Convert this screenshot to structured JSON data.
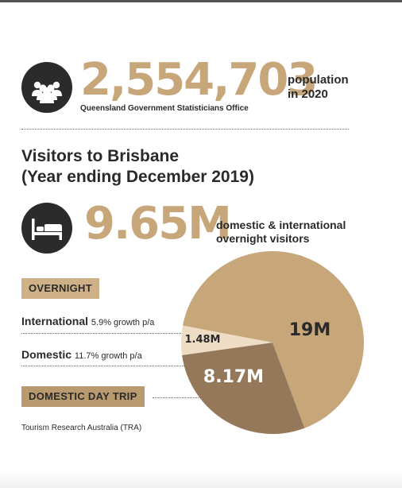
{
  "colors": {
    "accent": "#c7a77a",
    "pie_large": "#c7a77a",
    "pie_domestic": "#95785a",
    "pie_international": "#efdcc4",
    "icon_bg": "#2b2b2b",
    "tag_overnight": "#cfb188",
    "tag_daytrip": "#b99a6f"
  },
  "population": {
    "icon": "people-group-icon",
    "value": "2,554,703",
    "label": "population in 2020",
    "label_line1": "population",
    "label_line2": "in 2020",
    "source": "Queensland Government Statisticians Office"
  },
  "section": {
    "title_line1": "Visitors to Brisbane",
    "title_line2": "(Year ending December 2019)"
  },
  "visitors": {
    "icon": "bed-icon",
    "value": "9.65M",
    "label_line1": "domestic & international",
    "label_line2": "overnight visitors"
  },
  "legend": {
    "overnight_tag": "OVERNIGHT",
    "international_label": "International",
    "international_growth": "5.9% growth p/a",
    "domestic_label": "Domestic",
    "domestic_growth": "11.7% growth p/a",
    "daytrip_tag": "DOMESTIC DAY TRIP",
    "source": "Tourism Research Australia (TRA)"
  },
  "chart_data": {
    "type": "pie",
    "slices": [
      {
        "label": "Domestic day trip",
        "value": 19,
        "display": "19M"
      },
      {
        "label": "International overnight",
        "value": 1.48,
        "display": "1.48M"
      },
      {
        "label": "Domestic overnight",
        "value": 8.17,
        "display": "8.17M"
      }
    ],
    "unit": "M"
  }
}
